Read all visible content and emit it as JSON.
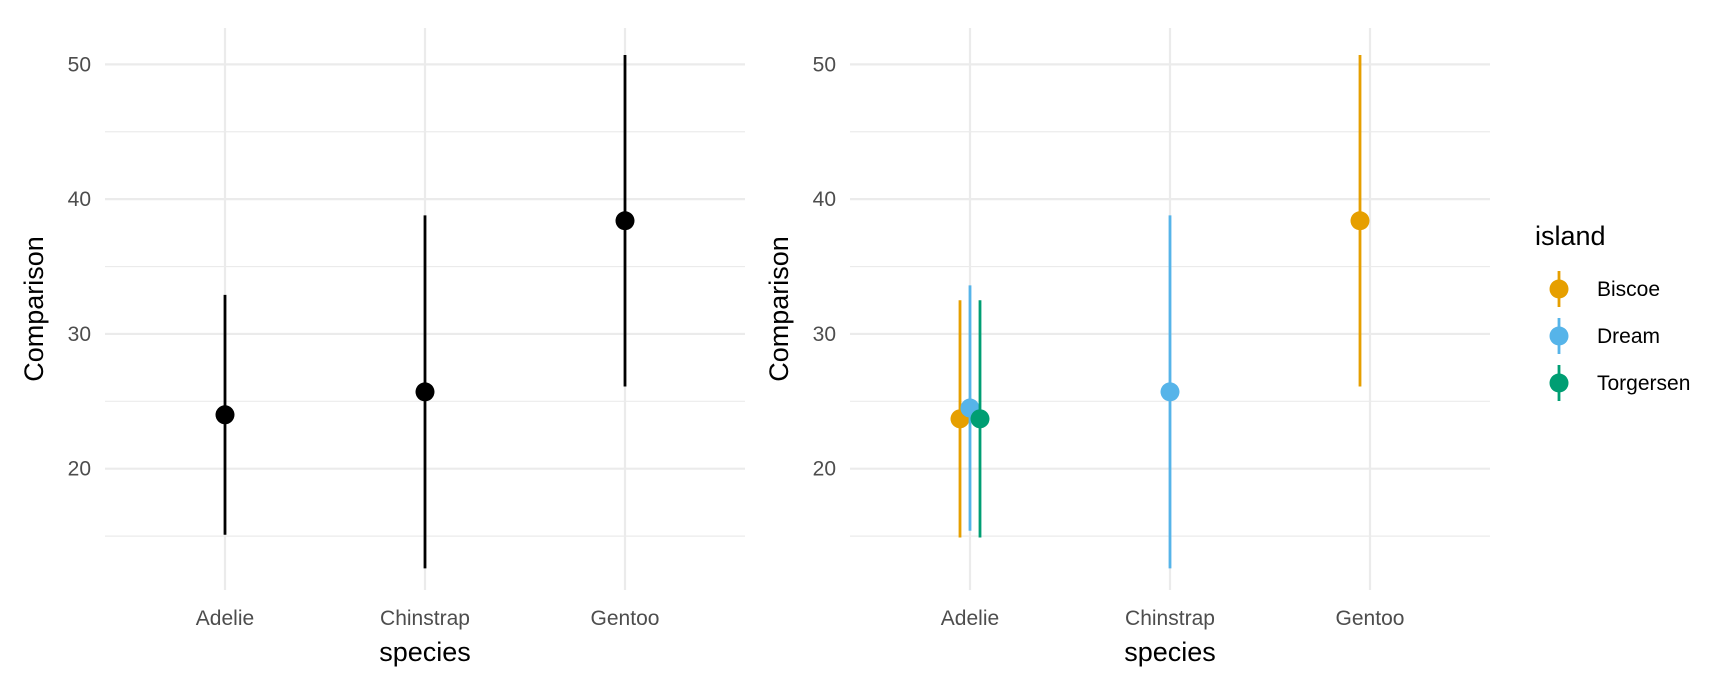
{
  "chart_data": [
    {
      "type": "errorbar",
      "title": "",
      "xlabel": "species",
      "ylabel": "Comparison",
      "categories": [
        "Adelie",
        "Chinstrap",
        "Gentoo"
      ],
      "yticks": [
        20,
        30,
        40,
        50
      ],
      "ylim": [
        11,
        52.7
      ],
      "grid": true,
      "series": [
        {
          "color": "#000000",
          "points": [
            {
              "x": "Adelie",
              "y": 24.0,
              "ymin": 15.1,
              "ymax": 32.9
            },
            {
              "x": "Chinstrap",
              "y": 25.7,
              "ymin": 12.6,
              "ymax": 38.8
            },
            {
              "x": "Gentoo",
              "y": 38.4,
              "ymin": 26.1,
              "ymax": 50.7
            }
          ]
        }
      ]
    },
    {
      "type": "errorbar",
      "title": "",
      "xlabel": "species",
      "ylabel": "Comparison",
      "categories": [
        "Adelie",
        "Chinstrap",
        "Gentoo"
      ],
      "yticks": [
        20,
        30,
        40,
        50
      ],
      "ylim": [
        11,
        52.7
      ],
      "grid": true,
      "legend": {
        "title": "island",
        "position": "right"
      },
      "series": [
        {
          "name": "Biscoe",
          "color": "#E69F00",
          "points": [
            {
              "x": "Adelie",
              "y": 23.7,
              "ymin": 14.9,
              "ymax": 32.5
            },
            {
              "x": "Gentoo",
              "y": 38.4,
              "ymin": 26.1,
              "ymax": 50.7
            }
          ]
        },
        {
          "name": "Dream",
          "color": "#56B4E9",
          "points": [
            {
              "x": "Adelie",
              "y": 24.5,
              "ymin": 15.4,
              "ymax": 33.6
            },
            {
              "x": "Chinstrap",
              "y": 25.7,
              "ymin": 12.6,
              "ymax": 38.8
            }
          ]
        },
        {
          "name": "Torgersen",
          "color": "#009E73",
          "points": [
            {
              "x": "Adelie",
              "y": 23.7,
              "ymin": 14.9,
              "ymax": 32.5
            }
          ]
        }
      ]
    }
  ]
}
